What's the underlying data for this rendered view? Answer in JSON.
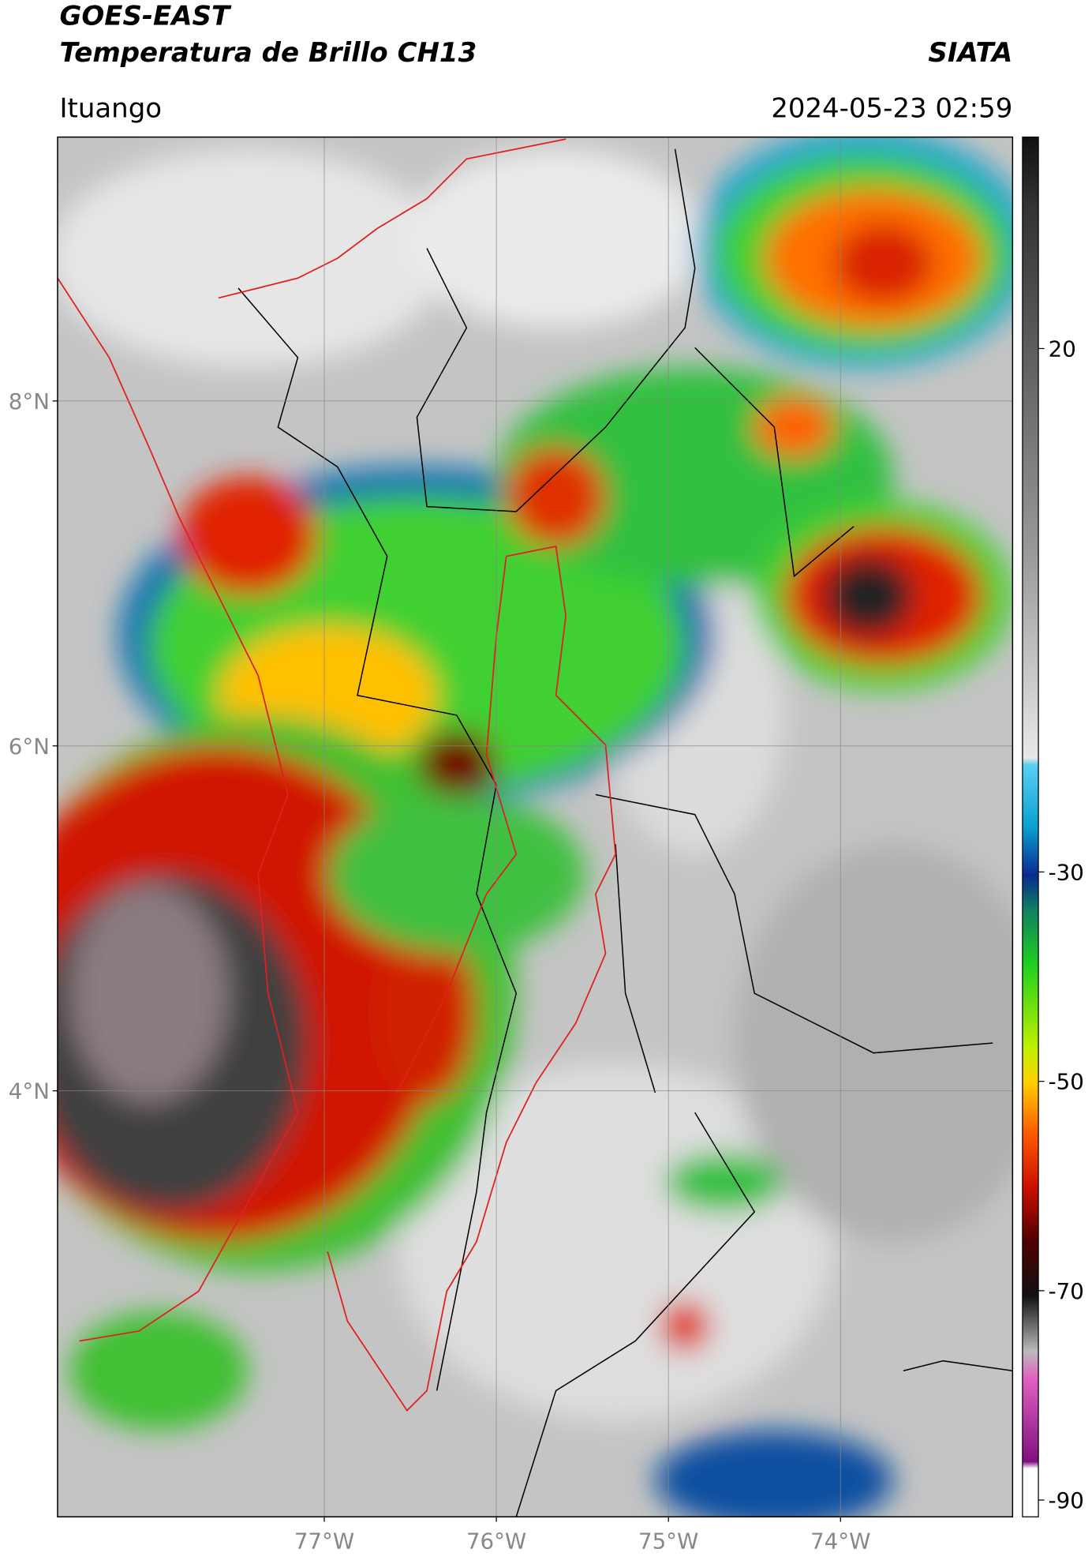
{
  "header": {
    "satellite": "GOES-EAST",
    "product": "Temperatura de Brillo CH13",
    "org": "SIATA",
    "location": "Ituango",
    "datetime": "2024-05-23 02:59"
  },
  "map": {
    "lat_lim": [
      1.53,
      9.53
    ],
    "lon_lim": [
      -78.55,
      -73.0
    ],
    "lat_ticks": [
      {
        "value": 8,
        "label": "8°N"
      },
      {
        "value": 6,
        "label": "6°N"
      },
      {
        "value": 4,
        "label": "4°N"
      }
    ],
    "lon_ticks": [
      {
        "value": -77,
        "label": "77°W"
      },
      {
        "value": -76,
        "label": "76°W"
      },
      {
        "value": -75,
        "label": "75°W"
      },
      {
        "value": -74,
        "label": "74°W"
      }
    ]
  },
  "colorbar": {
    "lim": [
      -91.6,
      40.2
    ],
    "ticks": [
      20,
      -30,
      -50,
      -70,
      -90
    ]
  }
}
